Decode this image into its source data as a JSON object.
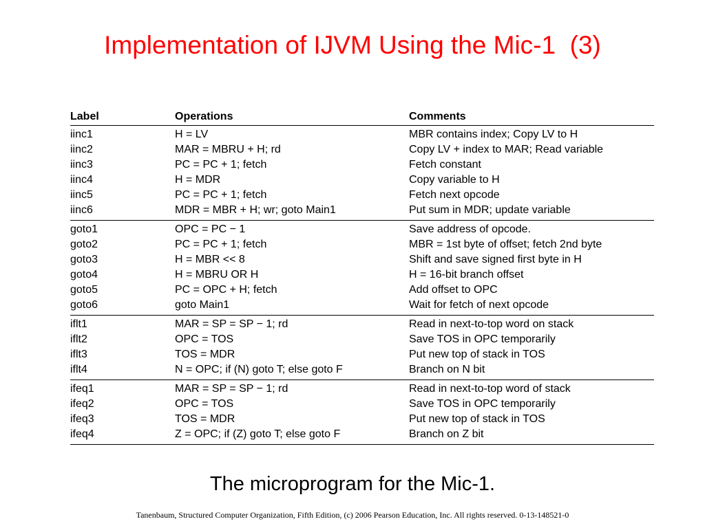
{
  "slide": {
    "title": "Implementation of IJVM Using the Mic-1  (3)",
    "caption": "The microprogram for the Mic-1.",
    "footer": "Tanenbaum, Structured Computer Organization, Fifth Edition, (c) 2006 Pearson Education, Inc. All rights reserved. 0-13-148521-0"
  },
  "table": {
    "headers": [
      "Label",
      "Operations",
      "Comments"
    ],
    "groups": [
      [
        [
          "iinc1",
          "H = LV",
          "MBR contains index; Copy LV to H"
        ],
        [
          "iinc2",
          "MAR = MBRU + H; rd",
          "Copy LV + index to MAR; Read variable"
        ],
        [
          "iinc3",
          "PC = PC + 1; fetch",
          "Fetch constant"
        ],
        [
          "iinc4",
          "H = MDR",
          "Copy variable to H"
        ],
        [
          "iinc5",
          "PC = PC + 1; fetch",
          "Fetch next opcode"
        ],
        [
          "iinc6",
          "MDR = MBR + H; wr; goto Main1",
          "Put sum in MDR; update variable"
        ]
      ],
      [
        [
          "goto1",
          "OPC = PC − 1",
          "Save address of opcode."
        ],
        [
          "goto2",
          "PC = PC + 1; fetch",
          "MBR = 1st byte of offset; fetch 2nd byte"
        ],
        [
          "goto3",
          "H = MBR << 8",
          "Shift and save signed first byte in H"
        ],
        [
          "goto4",
          "H = MBRU OR H",
          "H = 16-bit branch offset"
        ],
        [
          "goto5",
          "PC = OPC + H; fetch",
          "Add offset to OPC"
        ],
        [
          "goto6",
          "goto Main1",
          "Wait for fetch of next opcode"
        ]
      ],
      [
        [
          "iflt1",
          "MAR = SP = SP − 1; rd",
          "Read in next-to-top word on stack"
        ],
        [
          "iflt2",
          "OPC = TOS",
          "Save TOS in OPC temporarily"
        ],
        [
          "iflt3",
          "TOS = MDR",
          "Put new top of stack in TOS"
        ],
        [
          "iflt4",
          "N = OPC; if (N) goto T; else goto F",
          "Branch on N bit"
        ]
      ],
      [
        [
          "ifeq1",
          "MAR = SP = SP − 1; rd",
          "Read in next-to-top word of stack"
        ],
        [
          "ifeq2",
          "OPC = TOS",
          "Save TOS in OPC temporarily"
        ],
        [
          "ifeq3",
          "TOS = MDR",
          "Put new top of stack in TOS"
        ],
        [
          "ifeq4",
          "Z = OPC; if (Z) goto T; else goto F",
          "Branch on Z bit"
        ]
      ]
    ]
  },
  "colors": {
    "title": "#ff0000",
    "text": "#000000",
    "background": "#ffffff"
  }
}
